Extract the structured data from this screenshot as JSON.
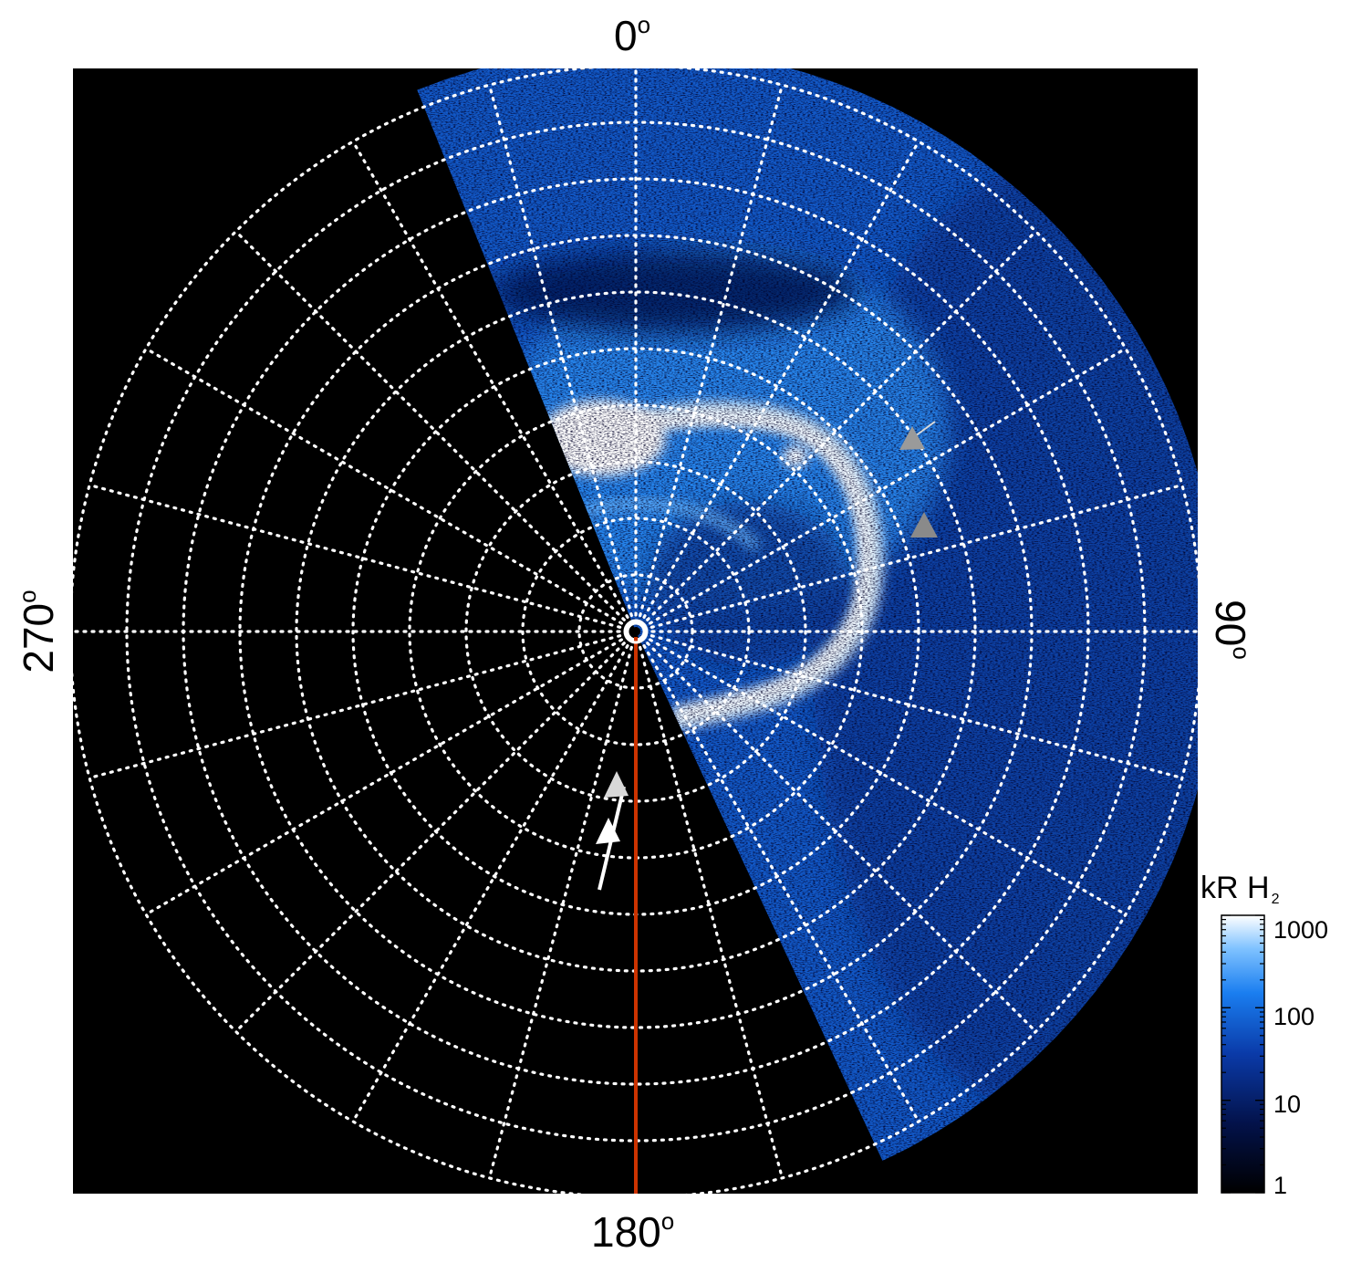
{
  "plot": {
    "background": "#000000",
    "grid_color": "#ffffff",
    "meridian_color": "#cc3300",
    "latitude_circles": 10,
    "longitude_spacing_deg": 15
  },
  "axis_labels": {
    "top": "0",
    "right": "90",
    "bottom": "180",
    "left": "270",
    "degree_symbol": "o"
  },
  "colorbar": {
    "title_main": "kR H",
    "title_sub": "2",
    "ticks": [
      "1000",
      "100",
      "10",
      "1"
    ],
    "scale": "log",
    "colors": [
      "#000000",
      "#03124a",
      "#0a3aa8",
      "#1a7ef0",
      "#7fc2ff",
      "#ffffff"
    ]
  },
  "markers": {
    "arrow_color": "#ffffff",
    "triangle_dark": "#8a8a8a",
    "triangle_light": "#d8d8d8"
  }
}
